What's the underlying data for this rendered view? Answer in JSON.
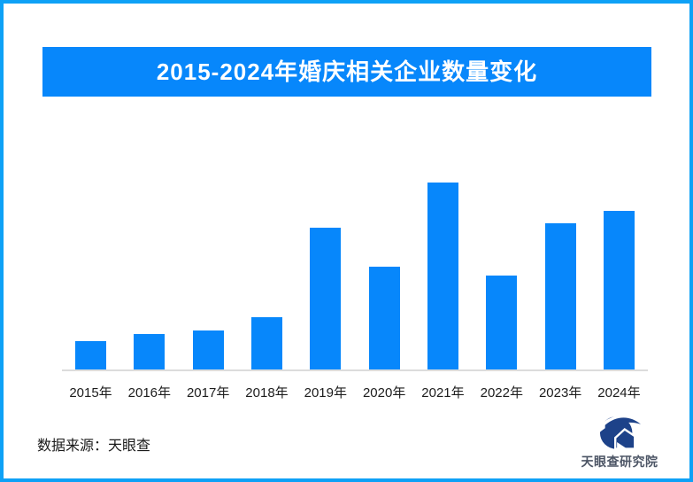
{
  "header": {
    "title": "2015-2024年婚庆相关企业数量变化"
  },
  "chart_data": {
    "type": "bar",
    "title": "2015-2024年婚庆相关企业数量变化",
    "categories": [
      "2015年",
      "2016年",
      "2017年",
      "2018年",
      "2019年",
      "2020年",
      "2021年",
      "2022年",
      "2023年",
      "2024年"
    ],
    "values": [
      15,
      19,
      21,
      28,
      76,
      55,
      100,
      50,
      78,
      85
    ],
    "value_scale": "relative height, 2021 peak = 100 (no numeric value axis shown in image)",
    "xlabel": "",
    "ylabel": "",
    "ylim": [
      0,
      100
    ],
    "grid": false,
    "legend": false,
    "bar_color": "#0787fb",
    "axis_line_color": "#dcdcdc"
  },
  "footer": {
    "source_label": "数据来源：天眼查",
    "logo_text": "天眼查研究院"
  },
  "colors": {
    "page_border": "#0ea1f6",
    "banner_bg": "#0787fb",
    "banner_text": "#ffffff",
    "bar": "#0787fb",
    "axis_line": "#dcdcdc",
    "tick_label": "#1c1c1c",
    "source_text": "#1a1a1a",
    "logo_navy": "#1d4289",
    "logo_text_color": "#4c5565"
  }
}
